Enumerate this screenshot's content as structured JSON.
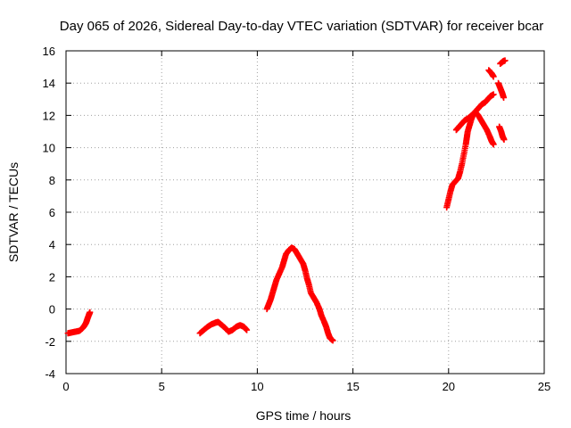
{
  "chart_data": {
    "type": "scatter",
    "title": "Day 065 of 2026, Sidereal Day-to-day VTEC variation (SDTVAR) for receiver bcar",
    "xlabel": "GPS time / hours",
    "ylabel": "SDTVAR / TECUs",
    "xlim": [
      0,
      25
    ],
    "ylim": [
      -4,
      16
    ],
    "xticks": [
      "0",
      "5",
      "10",
      "15",
      "20",
      "25"
    ],
    "yticks": [
      "-4",
      "-2",
      "0",
      "2",
      "4",
      "6",
      "8",
      "10",
      "12",
      "14",
      "16"
    ],
    "grid": true,
    "marker": "plus",
    "color": "#ff0000",
    "series": [
      {
        "segments": [
          [
            [
              0.1,
              -1.5
            ],
            [
              0.3,
              -1.45
            ],
            [
              0.5,
              -1.4
            ],
            [
              0.7,
              -1.35
            ],
            [
              0.85,
              -1.2
            ],
            [
              0.95,
              -1.05
            ],
            [
              1.05,
              -0.85
            ],
            [
              1.12,
              -0.6
            ],
            [
              1.2,
              -0.35
            ],
            [
              1.25,
              -0.2
            ]
          ],
          [
            [
              7.0,
              -1.5
            ],
            [
              7.2,
              -1.3
            ],
            [
              7.4,
              -1.1
            ],
            [
              7.6,
              -0.95
            ],
            [
              7.8,
              -0.85
            ],
            [
              7.95,
              -0.8
            ],
            [
              8.1,
              -0.95
            ],
            [
              8.3,
              -1.15
            ],
            [
              8.5,
              -1.4
            ],
            [
              8.7,
              -1.3
            ],
            [
              8.9,
              -1.1
            ],
            [
              9.1,
              -1.0
            ],
            [
              9.3,
              -1.1
            ],
            [
              9.45,
              -1.3
            ]
          ],
          [
            [
              10.5,
              0.0
            ],
            [
              10.6,
              0.3
            ],
            [
              10.7,
              0.6
            ],
            [
              10.8,
              1.0
            ],
            [
              10.9,
              1.4
            ],
            [
              11.0,
              1.8
            ],
            [
              11.15,
              2.2
            ],
            [
              11.3,
              2.6
            ],
            [
              11.4,
              3.0
            ],
            [
              11.5,
              3.4
            ],
            [
              11.65,
              3.65
            ],
            [
              11.8,
              3.8
            ],
            [
              11.95,
              3.7
            ],
            [
              12.1,
              3.4
            ],
            [
              12.25,
              3.1
            ],
            [
              12.4,
              2.8
            ],
            [
              12.5,
              2.4
            ],
            [
              12.6,
              1.9
            ],
            [
              12.7,
              1.5
            ],
            [
              12.8,
              1.0
            ],
            [
              12.95,
              0.7
            ],
            [
              13.1,
              0.4
            ],
            [
              13.25,
              0.0
            ],
            [
              13.35,
              -0.4
            ],
            [
              13.5,
              -0.8
            ],
            [
              13.6,
              -1.1
            ],
            [
              13.7,
              -1.5
            ],
            [
              13.8,
              -1.8
            ],
            [
              13.95,
              -1.95
            ]
          ],
          [
            [
              19.9,
              6.3
            ],
            [
              20.0,
              6.8
            ],
            [
              20.1,
              7.3
            ],
            [
              20.2,
              7.7
            ],
            [
              20.35,
              7.9
            ],
            [
              20.5,
              8.1
            ],
            [
              20.6,
              8.5
            ],
            [
              20.7,
              9.0
            ],
            [
              20.8,
              9.6
            ],
            [
              20.9,
              10.2
            ],
            [
              20.95,
              10.6
            ],
            [
              21.0,
              11.0
            ],
            [
              21.1,
              11.4
            ],
            [
              21.2,
              11.8
            ],
            [
              21.3,
              12.1
            ],
            [
              21.45,
              12.3
            ],
            [
              21.6,
              12.5
            ],
            [
              21.75,
              12.7
            ],
            [
              21.9,
              12.8
            ],
            [
              22.05,
              13.0
            ],
            [
              22.2,
              13.2
            ],
            [
              22.35,
              13.3
            ]
          ],
          [
            [
              20.4,
              11.1
            ],
            [
              20.55,
              11.3
            ],
            [
              20.7,
              11.5
            ],
            [
              20.85,
              11.7
            ],
            [
              21.0,
              11.8
            ],
            [
              21.2,
              12.0
            ],
            [
              21.4,
              12.2
            ],
            [
              21.55,
              12.0
            ],
            [
              21.7,
              11.7
            ],
            [
              21.85,
              11.4
            ],
            [
              22.0,
              11.1
            ],
            [
              22.15,
              10.7
            ],
            [
              22.25,
              10.4
            ],
            [
              22.35,
              10.2
            ]
          ],
          [
            [
              22.1,
              14.8
            ],
            [
              22.25,
              14.6
            ],
            [
              22.35,
              14.4
            ]
          ],
          [
            [
              22.7,
              15.2
            ],
            [
              22.85,
              15.35
            ],
            [
              22.95,
              15.4
            ]
          ],
          [
            [
              22.6,
              14.0
            ],
            [
              22.7,
              13.7
            ],
            [
              22.8,
              13.4
            ],
            [
              22.88,
              13.1
            ]
          ],
          [
            [
              22.65,
              11.3
            ],
            [
              22.75,
              11.0
            ],
            [
              22.82,
              10.7
            ],
            [
              22.9,
              10.5
            ]
          ]
        ]
      }
    ]
  }
}
